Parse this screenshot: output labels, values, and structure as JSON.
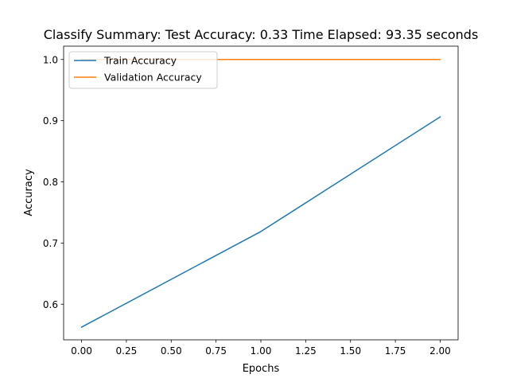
{
  "chart_data": {
    "type": "line",
    "title": "Classify Summary: Test Accuracy: 0.33 Time Elapsed: 93.35 seconds",
    "xlabel": "Epochs",
    "ylabel": "Accuracy",
    "xlim": [
      -0.1,
      2.1
    ],
    "ylim": [
      0.5418,
      1.0218
    ],
    "x_ticks": [
      0.0,
      0.25,
      0.5,
      0.75,
      1.0,
      1.25,
      1.5,
      1.75,
      2.0
    ],
    "x_tick_labels": [
      "0.00",
      "0.25",
      "0.50",
      "0.75",
      "1.00",
      "1.25",
      "1.50",
      "1.75",
      "2.00"
    ],
    "y_ticks": [
      0.6,
      0.7,
      0.8,
      0.9,
      1.0
    ],
    "y_tick_labels": [
      "0.6",
      "0.7",
      "0.8",
      "0.9",
      "1.0"
    ],
    "grid": false,
    "legend_position": "top-left",
    "x": [
      0,
      1,
      2
    ],
    "series": [
      {
        "name": "Train Accuracy",
        "values": [
          0.5625,
          0.7188,
          0.9062
        ],
        "color": "#1f77b4"
      },
      {
        "name": "Validation Accuracy",
        "values": [
          1.0,
          1.0,
          1.0
        ],
        "color": "#ff7f0e"
      }
    ]
  }
}
